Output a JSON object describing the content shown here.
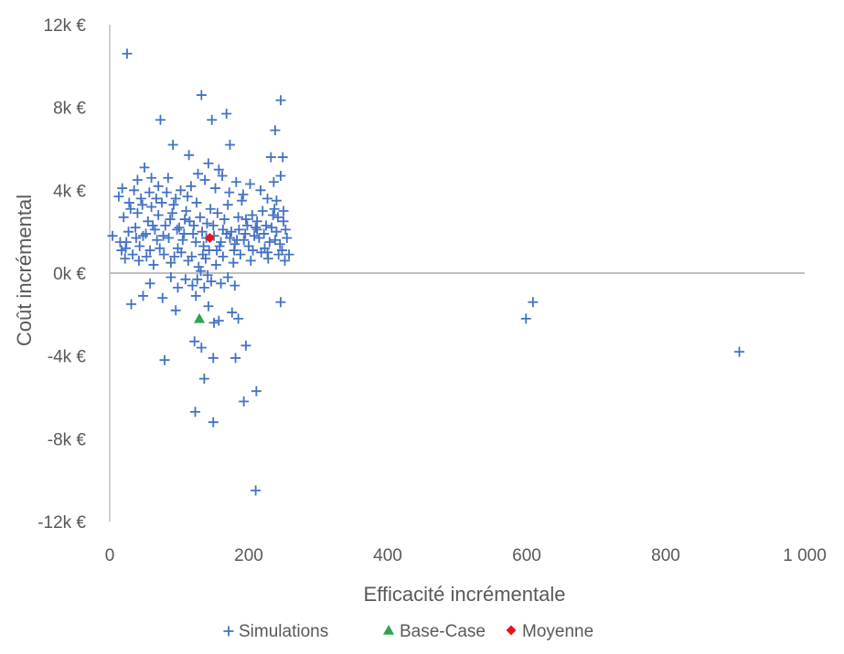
{
  "chart_data": {
    "type": "scatter",
    "xlabel": "Efficacité incrémentale",
    "ylabel": "Coût incrémental",
    "xlim": [
      0,
      1000
    ],
    "ylim": [
      -12000,
      12000
    ],
    "x_ticks": [
      0,
      200,
      400,
      600,
      800,
      1000
    ],
    "x_tick_labels": [
      "0",
      "200",
      "400",
      "600",
      "800",
      "1 000"
    ],
    "y_ticks": [
      12000,
      8000,
      4000,
      0,
      -4000,
      -8000,
      -12000
    ],
    "y_tick_labels": [
      "12k €",
      "8k €",
      "4k €",
      "0k €",
      "-4k €",
      "-8k €",
      "-12k €"
    ],
    "grid": false,
    "zero_line": true,
    "legend_position": "bottom",
    "colors": {
      "simulations": "#4472C4",
      "base_case": "#2EA44F",
      "moyenne": "#E8141B",
      "axis": "#BFBFBF",
      "text": "#595959"
    },
    "series": [
      {
        "name": "Simulations",
        "marker": "plus",
        "points": [
          [
            25,
            10600
          ],
          [
            132,
            8600
          ],
          [
            246,
            8350
          ],
          [
            73,
            7400
          ],
          [
            168,
            7700
          ],
          [
            147,
            7400
          ],
          [
            238,
            6900
          ],
          [
            91,
            6200
          ],
          [
            114,
            5700
          ],
          [
            50,
            5100
          ],
          [
            232,
            5600
          ],
          [
            249,
            5600
          ],
          [
            173,
            6200
          ],
          [
            18,
            4100
          ],
          [
            35,
            4000
          ],
          [
            84,
            4600
          ],
          [
            246,
            4700
          ],
          [
            13,
            3700
          ],
          [
            28,
            3400
          ],
          [
            24,
            1500
          ],
          [
            4,
            1800
          ],
          [
            72,
            1200
          ],
          [
            118,
            800
          ],
          [
            196,
            2600
          ],
          [
            212,
            2100
          ],
          [
            37,
            2200
          ],
          [
            22,
            700
          ],
          [
            58,
            -500
          ],
          [
            31,
            -1500
          ],
          [
            48,
            -1100
          ],
          [
            76,
            -1200
          ],
          [
            95,
            -1800
          ],
          [
            124,
            -1100
          ],
          [
            142,
            -1600
          ],
          [
            176,
            -1900
          ],
          [
            185,
            -2200
          ],
          [
            246,
            -1400
          ],
          [
            150,
            -2400
          ],
          [
            157,
            -2300
          ],
          [
            122,
            -3300
          ],
          [
            132,
            -3600
          ],
          [
            149,
            -4100
          ],
          [
            79,
            -4200
          ],
          [
            181,
            -4100
          ],
          [
            196,
            -3500
          ],
          [
            136,
            -5100
          ],
          [
            211,
            -5700
          ],
          [
            193,
            -6200
          ],
          [
            123,
            -6700
          ],
          [
            149,
            -7200
          ],
          [
            210,
            -10500
          ],
          [
            599,
            -2200
          ],
          [
            609,
            -1400
          ],
          [
            906,
            -3800
          ],
          [
            20,
            2700
          ],
          [
            30,
            3100
          ],
          [
            40,
            2900
          ],
          [
            45,
            3600
          ],
          [
            55,
            2500
          ],
          [
            60,
            3200
          ],
          [
            65,
            2100
          ],
          [
            70,
            2800
          ],
          [
            75,
            3400
          ],
          [
            80,
            2300
          ],
          [
            85,
            1700
          ],
          [
            90,
            2900
          ],
          [
            95,
            3600
          ],
          [
            100,
            2200
          ],
          [
            105,
            1600
          ],
          [
            110,
            3000
          ],
          [
            115,
            2500
          ],
          [
            120,
            1900
          ],
          [
            125,
            3400
          ],
          [
            130,
            2700
          ],
          [
            135,
            1300
          ],
          [
            140,
            2400
          ],
          [
            145,
            3100
          ],
          [
            150,
            1800
          ],
          [
            155,
            2900
          ],
          [
            160,
            1500
          ],
          [
            165,
            2600
          ],
          [
            170,
            3300
          ],
          [
            175,
            2000
          ],
          [
            180,
            1400
          ],
          [
            185,
            2700
          ],
          [
            190,
            3500
          ],
          [
            195,
            1900
          ],
          [
            200,
            1300
          ],
          [
            205,
            2800
          ],
          [
            210,
            2200
          ],
          [
            215,
            1700
          ],
          [
            220,
            3000
          ],
          [
            225,
            2300
          ],
          [
            230,
            1500
          ],
          [
            235,
            2800
          ],
          [
            240,
            2000
          ],
          [
            245,
            1400
          ],
          [
            250,
            2500
          ],
          [
            255,
            1700
          ],
          [
            258,
            900
          ],
          [
            252,
            600
          ],
          [
            243,
            900
          ],
          [
            228,
            700
          ],
          [
            218,
            1000
          ],
          [
            203,
            600
          ],
          [
            188,
            900
          ],
          [
            178,
            500
          ],
          [
            163,
            800
          ],
          [
            153,
            400
          ],
          [
            138,
            700
          ],
          [
            128,
            300
          ],
          [
            113,
            600
          ],
          [
            103,
            1000
          ],
          [
            88,
            500
          ],
          [
            78,
            900
          ],
          [
            63,
            400
          ],
          [
            53,
            800
          ],
          [
            43,
            1300
          ],
          [
            33,
            900
          ],
          [
            23,
            1200
          ],
          [
            15,
            1500
          ],
          [
            48,
            1800
          ],
          [
            68,
            1600
          ],
          [
            98,
            1200
          ],
          [
            108,
            2600
          ],
          [
            133,
            2000
          ],
          [
            143,
            1100
          ],
          [
            158,
            1300
          ],
          [
            168,
            1900
          ],
          [
            183,
            1600
          ],
          [
            198,
            2300
          ],
          [
            208,
            1800
          ],
          [
            223,
            1200
          ],
          [
            238,
            1600
          ],
          [
            248,
            1100
          ],
          [
            117,
            4200
          ],
          [
            127,
            4800
          ],
          [
            137,
            4500
          ],
          [
            152,
            4100
          ],
          [
            162,
            4700
          ],
          [
            172,
            3900
          ],
          [
            182,
            4400
          ],
          [
            192,
            3800
          ],
          [
            202,
            4300
          ],
          [
            142,
            5300
          ],
          [
            157,
            5000
          ],
          [
            112,
            3700
          ],
          [
            102,
            4000
          ],
          [
            92,
            3300
          ],
          [
            82,
            3900
          ],
          [
            67,
            3600
          ],
          [
            57,
            3900
          ],
          [
            47,
            3300
          ],
          [
            227,
            3600
          ],
          [
            237,
            3100
          ],
          [
            217,
            4000
          ],
          [
            126,
            -300
          ],
          [
            136,
            -700
          ],
          [
            146,
            -400
          ],
          [
            131,
            100
          ],
          [
            141,
            -100
          ],
          [
            160,
            -500
          ],
          [
            119,
            -600
          ],
          [
            109,
            -300
          ],
          [
            170,
            -200
          ],
          [
            98,
            -700
          ],
          [
            88,
            -200
          ],
          [
            180,
            -600
          ],
          [
            27,
            2000
          ],
          [
            38,
            1700
          ],
          [
            52,
            1900
          ],
          [
            62,
            2300
          ],
          [
            77,
            1800
          ],
          [
            87,
            2600
          ],
          [
            97,
            2100
          ],
          [
            107,
            1900
          ],
          [
            121,
            2300
          ],
          [
            139,
            1700
          ],
          [
            149,
            2300
          ],
          [
            163,
            2100
          ],
          [
            173,
            1700
          ],
          [
            186,
            2100
          ],
          [
            193,
            1600
          ],
          [
            212,
            2500
          ],
          [
            222,
            1900
          ],
          [
            233,
            2200
          ],
          [
            242,
            2700
          ],
          [
            253,
            2100
          ],
          [
            17,
            1100
          ],
          [
            42,
            600
          ],
          [
            58,
            1100
          ],
          [
            93,
            800
          ],
          [
            124,
            1500
          ],
          [
            134,
            900
          ],
          [
            154,
            1100
          ],
          [
            179,
            1100
          ],
          [
            206,
            1100
          ],
          [
            227,
            1000
          ],
          [
            240,
            3500
          ],
          [
            250,
            3000
          ],
          [
            236,
            4400
          ],
          [
            60,
            4600
          ],
          [
            70,
            4200
          ],
          [
            40,
            4500
          ]
        ]
      },
      {
        "name": "Base-Case",
        "marker": "triangle",
        "points": [
          [
            129,
            -2200
          ]
        ]
      },
      {
        "name": "Moyenne",
        "marker": "diamond",
        "points": [
          [
            144,
            1700
          ]
        ]
      }
    ]
  }
}
